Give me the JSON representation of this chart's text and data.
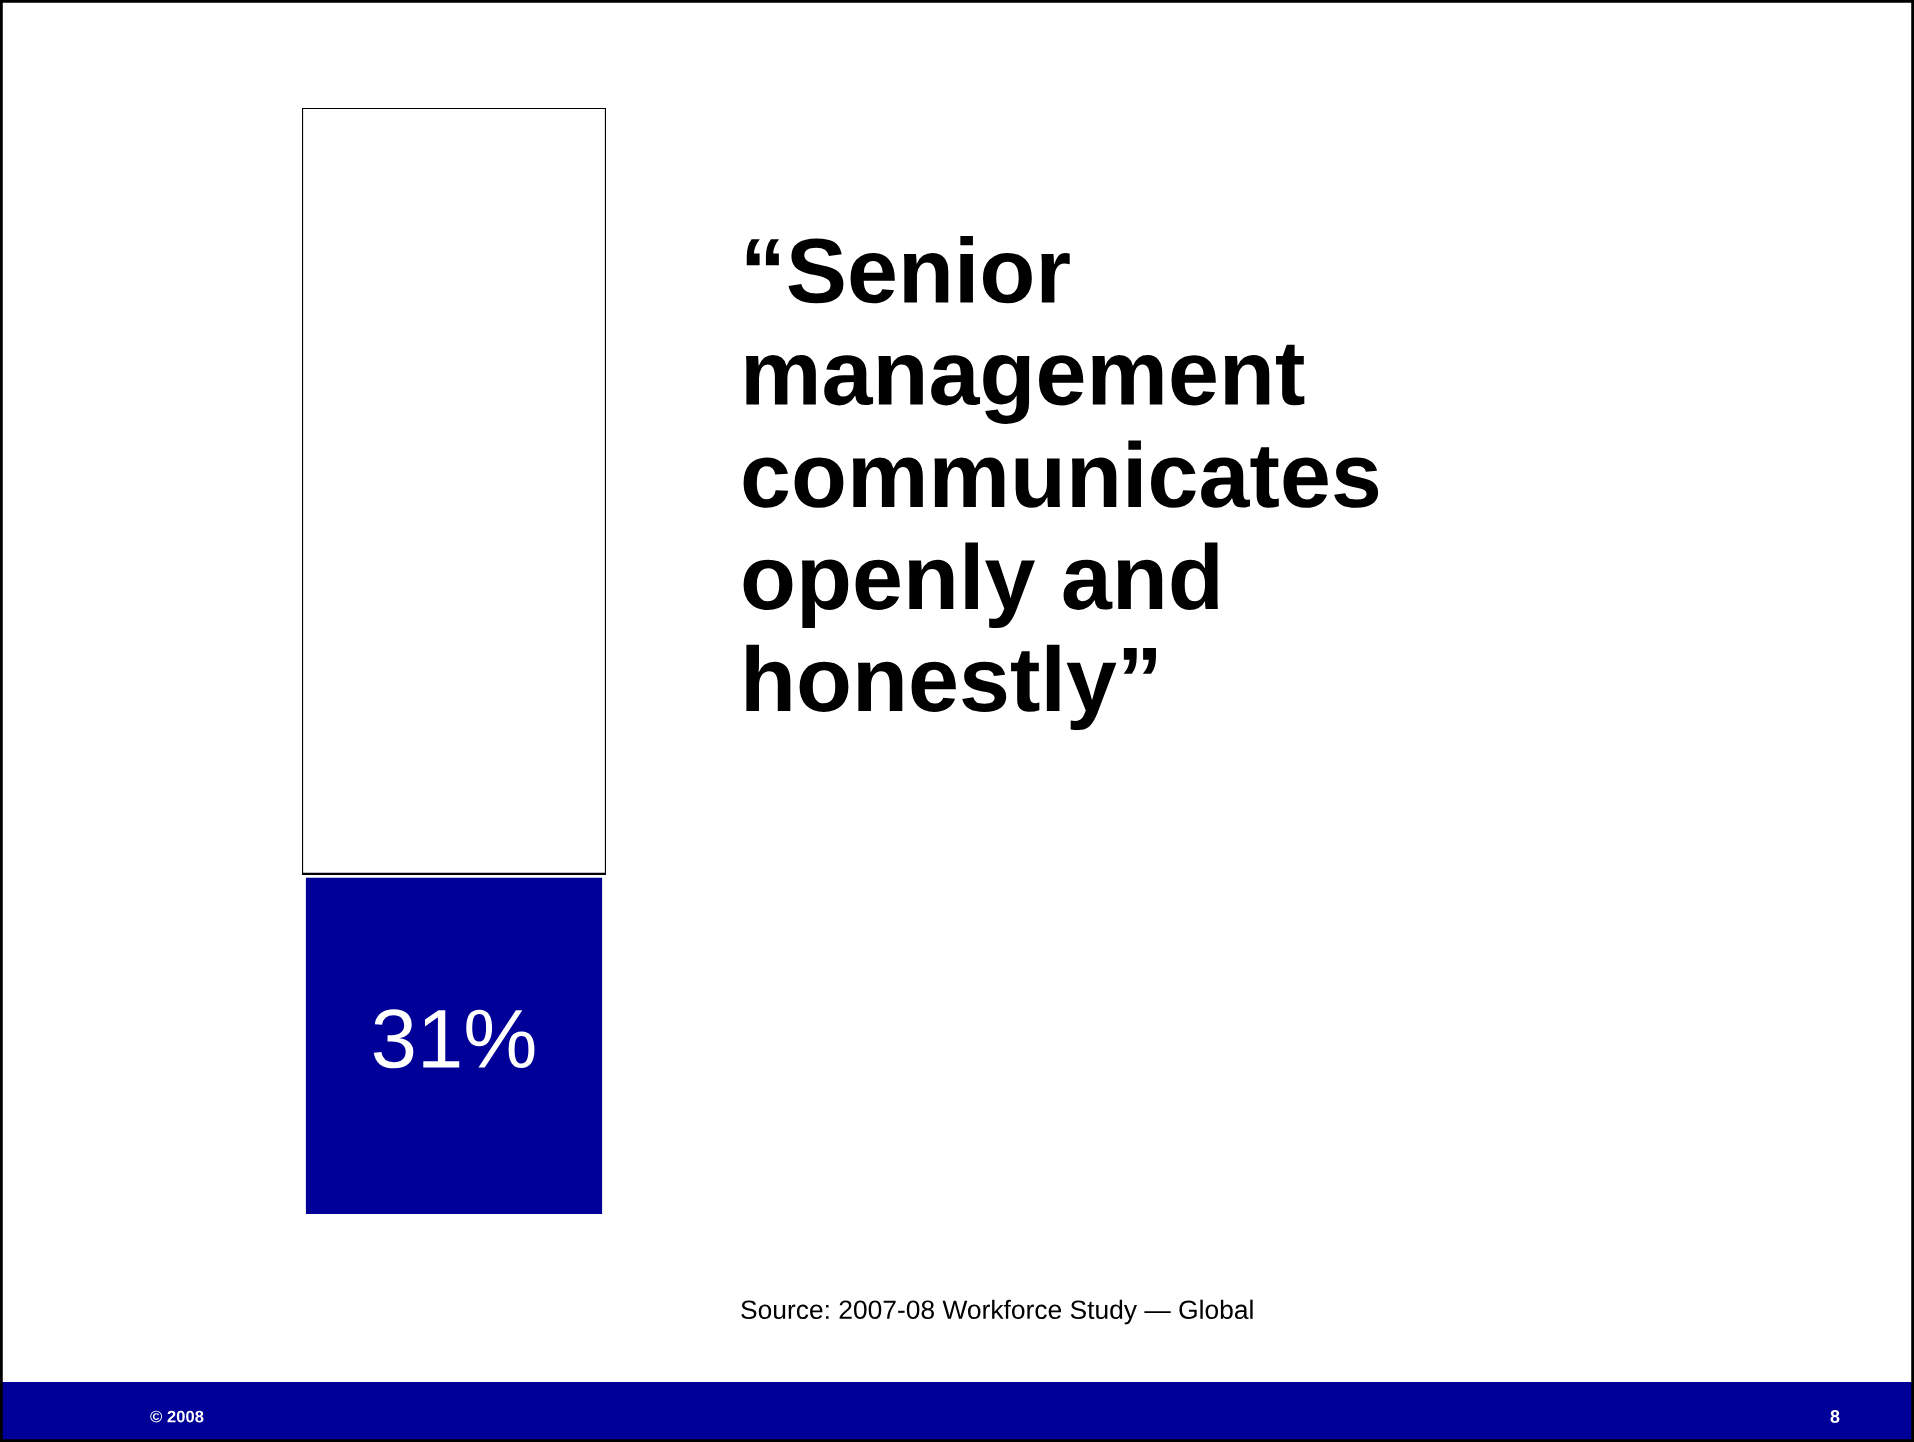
{
  "chart_data": {
    "type": "bar",
    "title": "“Senior\nmanagement\ncommunicates\nopenly and\nhonestly”",
    "categories": [
      null
    ],
    "stacked": true,
    "series": [
      {
        "color": "#000099",
        "values": [
          31
        ],
        "value_labels": [
          "31%"
        ]
      },
      {
        "color": "#ffffff",
        "values": [
          69
        ]
      }
    ],
    "annotations": [
      "Source: 2007-08 Workforce Study — Global",
      "© 2008",
      "8"
    ]
  }
}
